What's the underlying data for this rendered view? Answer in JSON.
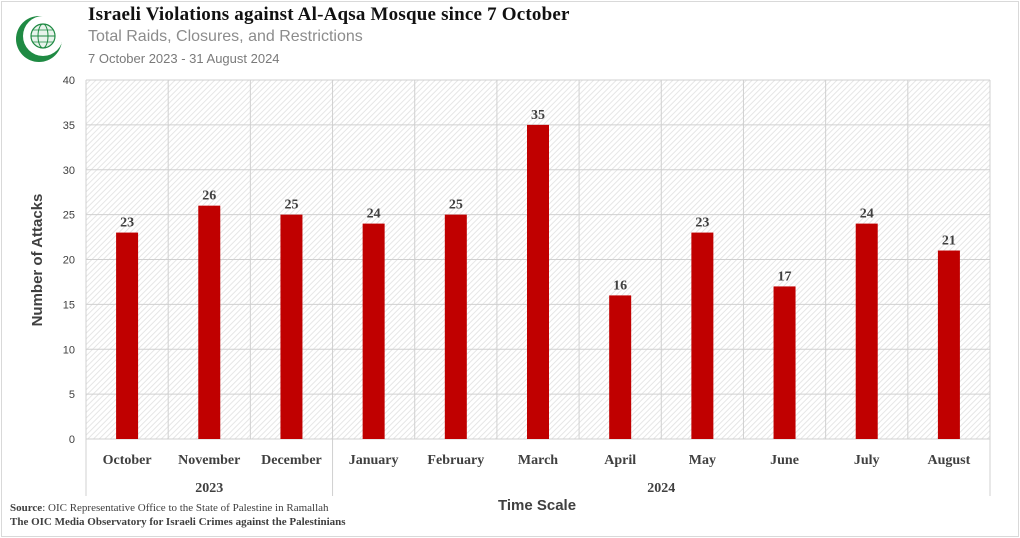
{
  "header": {
    "title": "Israeli Violations against Al-Aqsa Mosque since 7 October",
    "subtitle": "Total Raids, Closures, and Restrictions",
    "date_range": "7 October 2023 -  31 August 2024"
  },
  "footer": {
    "source_label": "Source",
    "source_text": ": OIC Representative Office to the State of Palestine in Ramallah",
    "observatory": "The OIC Media Observatory for Israeli Crimes against the Palestinians"
  },
  "logo": {
    "icon": "oic-emblem-icon",
    "colors": {
      "green": "#1f8a43",
      "white": "#ffffff"
    }
  },
  "chart_data": {
    "type": "bar",
    "categories": [
      "October",
      "November",
      "December",
      "January",
      "February",
      "March",
      "April",
      "May",
      "June",
      "July",
      "August"
    ],
    "year_groups": [
      {
        "label": "2023",
        "start": 0,
        "end": 2
      },
      {
        "label": "2024",
        "start": 3,
        "end": 10
      }
    ],
    "values": [
      23,
      26,
      25,
      24,
      25,
      35,
      16,
      23,
      17,
      24,
      21
    ],
    "ylabel": "Number of Attacks",
    "xlabel": "Time Scale",
    "ylim": [
      0,
      40
    ],
    "yticks": [
      0,
      5,
      10,
      15,
      20,
      25,
      30,
      35,
      40
    ],
    "data_labels": true,
    "grid": true,
    "bar_color": "#c00000",
    "plot_background": "hatched light gray"
  }
}
